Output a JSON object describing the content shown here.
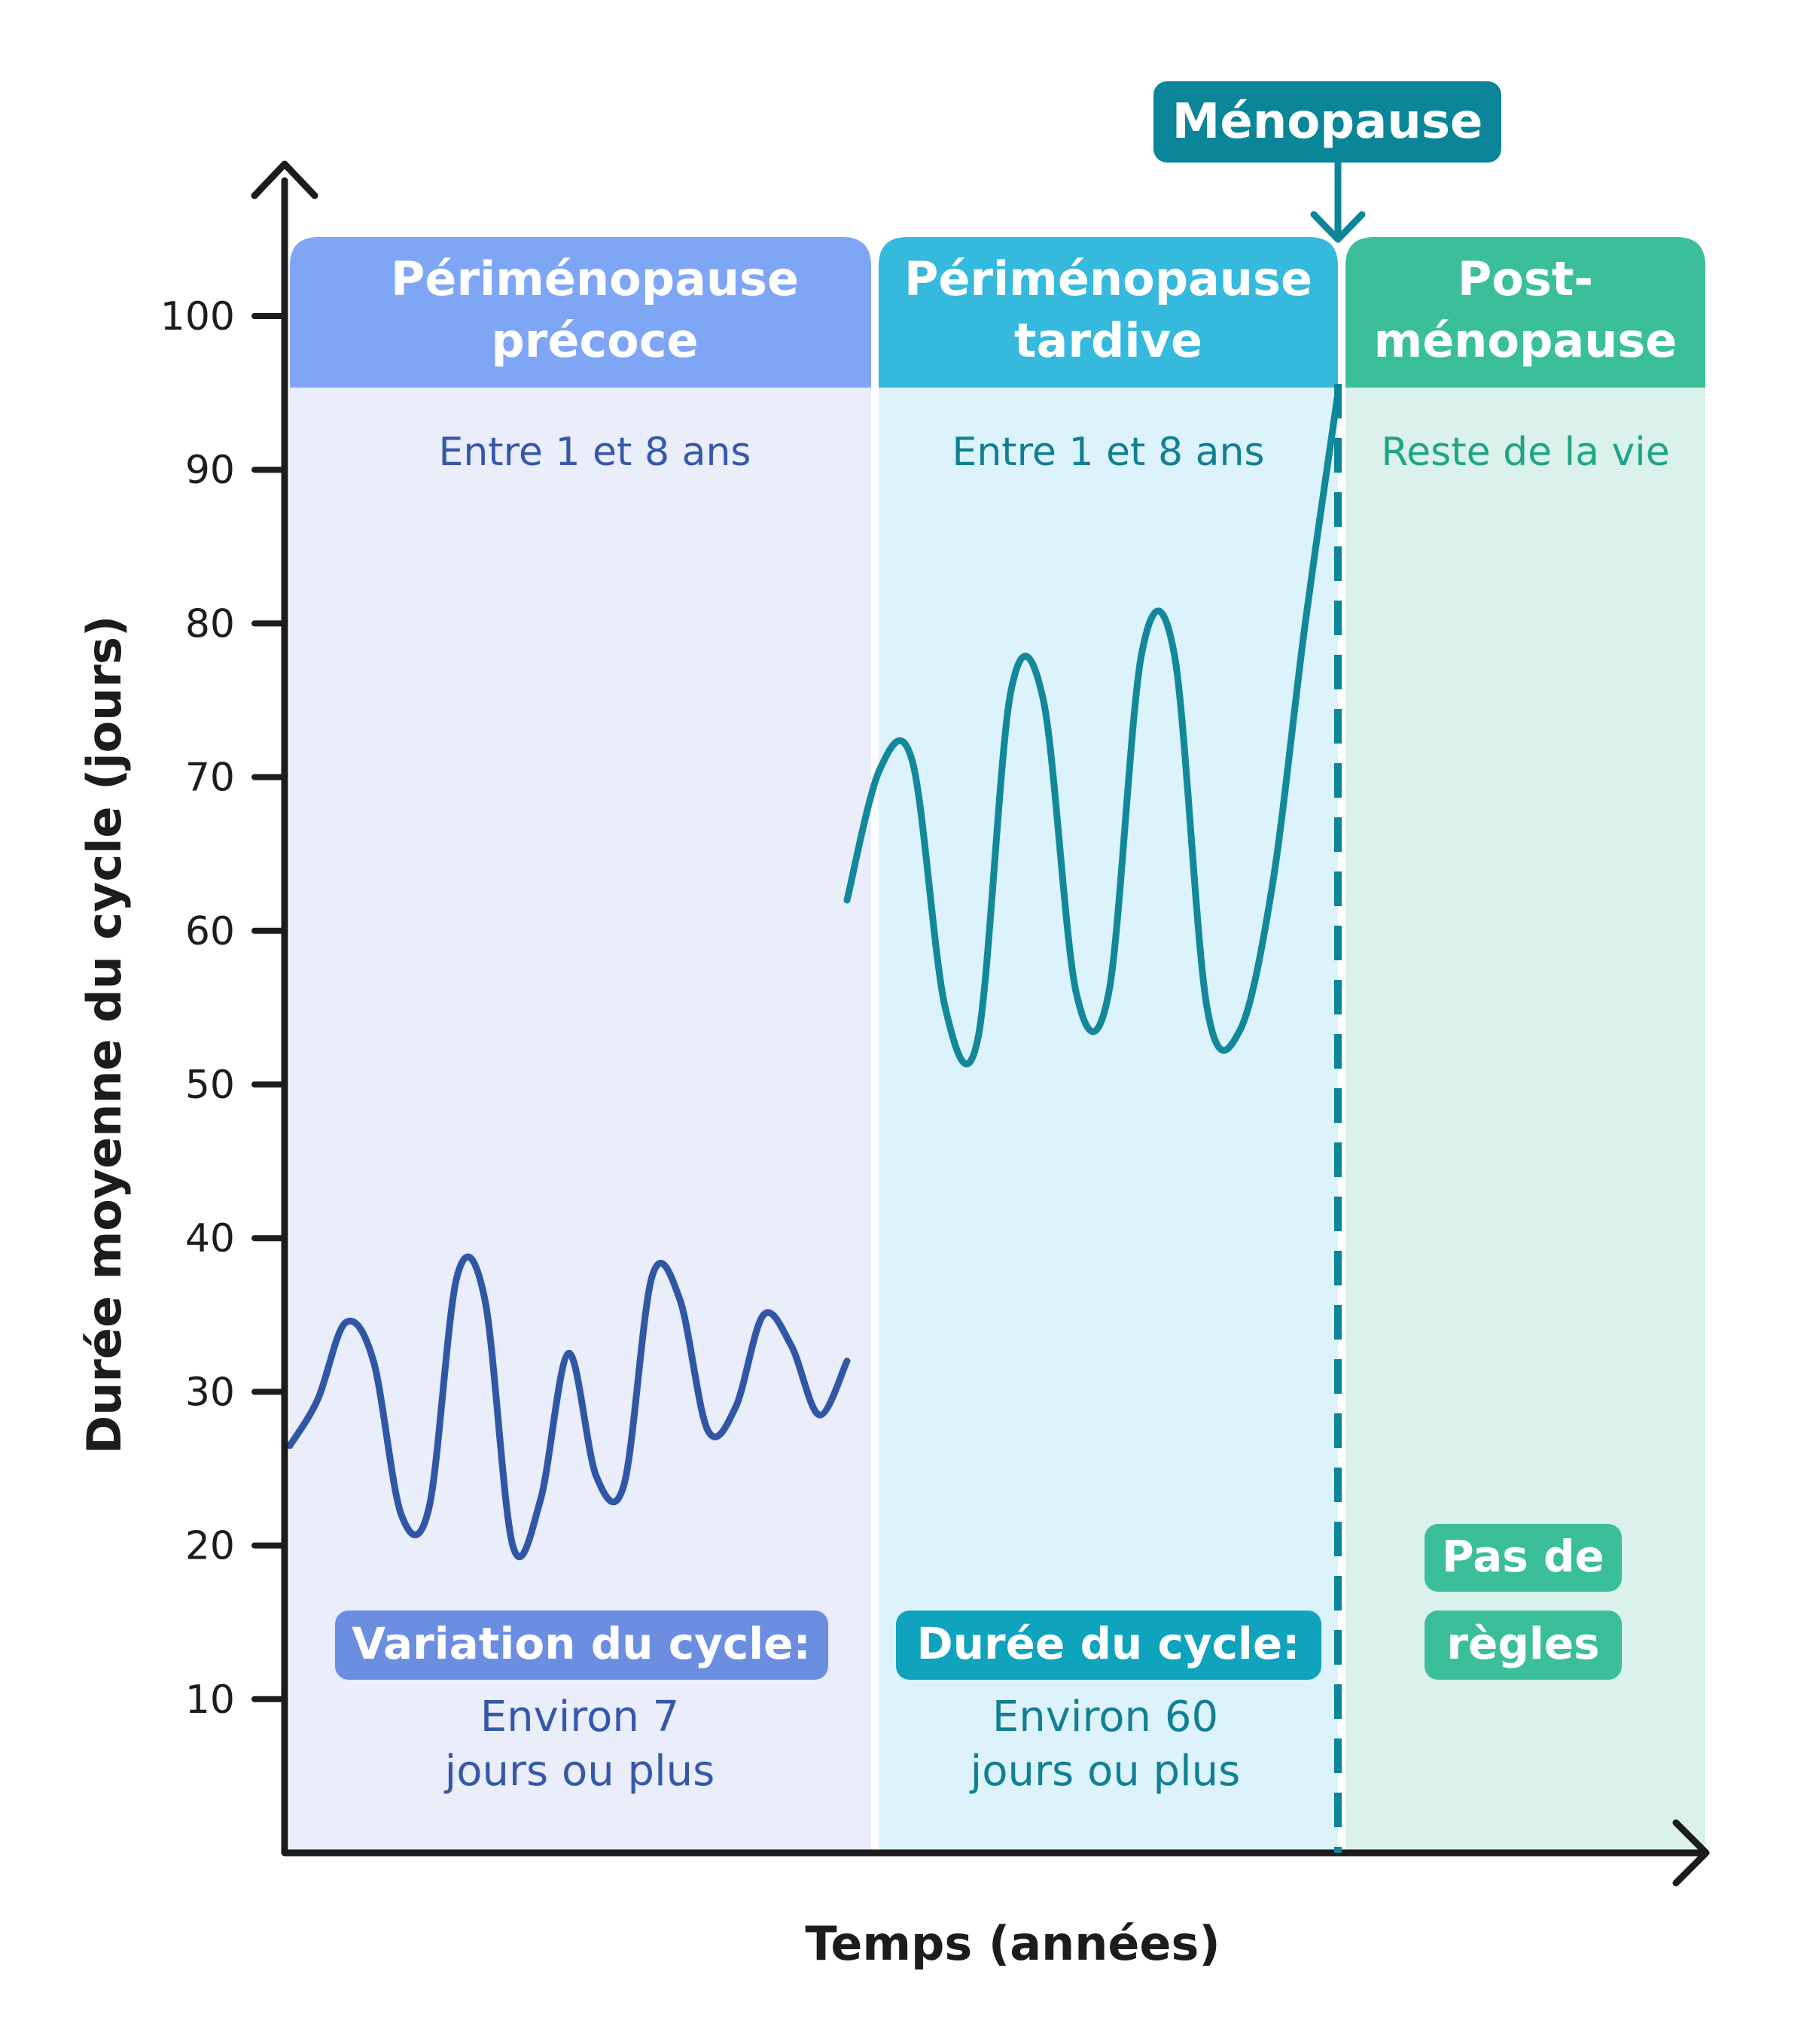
{
  "colors": {
    "axis": "#1c1c1c",
    "early": "#7fa6f5",
    "early_bg": "#eaedfa",
    "early_text": "#3558a8",
    "early_line": "#2f57a5",
    "early_badge": "#6b8ee0",
    "late": "#35b9dc",
    "late_bg": "#dcf3fb",
    "late_text": "#127f93",
    "late_line": "#12889a",
    "late_badge": "#0fa3bd",
    "post": "#3bbf9b",
    "post_bg": "#daf1ec",
    "post_text": "#1ea586",
    "menopause": "#0b8598"
  },
  "chart_data": {
    "type": "line",
    "ylabel": "Durée moyenne du cycle (jours)",
    "xlabel": "Temps (années)",
    "ylim": [
      0,
      100
    ],
    "yticks": [
      "10",
      "20",
      "30",
      "40",
      "50",
      "60",
      "70",
      "80",
      "90",
      "100"
    ],
    "grid": false,
    "phases": [
      {
        "title": [
          "Périménopause",
          "précoce"
        ],
        "duration": "Entre 1 et 8 ans",
        "badge": [
          "Variation du cycle:"
        ],
        "note": [
          "Environ 7",
          "jours ou plus"
        ]
      },
      {
        "title": [
          "Périménopause",
          "tardive"
        ],
        "duration": "Entre 1 et 8 ans",
        "badge": [
          "Durée du cycle:"
        ],
        "note": [
          "Environ 60",
          "jours ou plus"
        ]
      },
      {
        "title": [
          "Post-",
          "ménopause"
        ],
        "duration": "Reste de la vie",
        "badge": [
          "Pas de",
          "règles"
        ],
        "note": []
      }
    ],
    "menopause_label": "Ménopause",
    "series": [
      {
        "phase": "early",
        "values": [
          26.5,
          29.5,
          34.5,
          32,
          22,
          22.5,
          37.5,
          36,
          20,
          23,
          32.5,
          24.5,
          24,
          37.5,
          36,
          27.5,
          29,
          35,
          33,
          28.5,
          32
        ]
      },
      {
        "phase": "late",
        "values": [
          62,
          70.5,
          71,
          55,
          53,
          75.5,
          75,
          56,
          56,
          78,
          78,
          55,
          53.5,
          63,
          80,
          95
        ]
      }
    ]
  }
}
